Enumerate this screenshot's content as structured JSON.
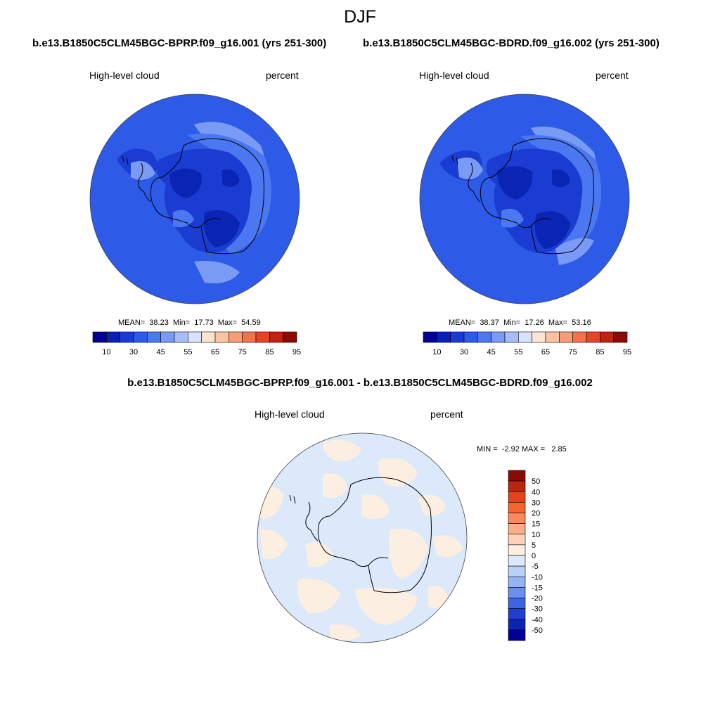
{
  "figure": {
    "season": "DJF",
    "variable": "High-level cloud",
    "units": "percent"
  },
  "panels": [
    {
      "case": "b.e13.B1850C5CLM45BGC-BPRP.f09_g16.001 (yrs 251-300)",
      "stats": "MEAN=  38.23  Min=  17.73  Max=  54.59"
    },
    {
      "case": "b.e13.B1850C5CLM45BGC-BDRD.f09_g16.002 (yrs 251-300)",
      "stats": "MEAN=  38.37  Min=  17.26  Max=  53.16"
    }
  ],
  "difference": {
    "title": "b.e13.B1850C5CLM45BGC-BPRP.f09_g16.001 - b.e13.B1850C5CLM45BGC-BDRD.f09_g16.002",
    "stats": "MIN =  -2.92 MAX =   2.85"
  },
  "colorbar_abs": {
    "colors": [
      "#000096",
      "#0a1fb4",
      "#1a3cd2",
      "#2d5ae6",
      "#4b78f0",
      "#7a9bf5",
      "#a6bdf8",
      "#d6e4fb",
      "#fde4d2",
      "#fcc3a3",
      "#f89c77",
      "#f3724b",
      "#e34627",
      "#c02214",
      "#8c0a04"
    ],
    "tick_labels": [
      "10",
      "30",
      "45",
      "55",
      "65",
      "75",
      "85",
      "95"
    ]
  },
  "colorbar_diff": {
    "colors": [
      "#8c0a04",
      "#b8260e",
      "#e0441c",
      "#f5642f",
      "#fa8a5e",
      "#fcae89",
      "#fdd2b8",
      "#fdeee2",
      "#dbe9fb",
      "#bad2f8",
      "#93b3f4",
      "#6b8fee",
      "#3f64e3",
      "#1f3fd0",
      "#0a24b4",
      "#000096"
    ],
    "tick_labels": [
      "50",
      "40",
      "30",
      "20",
      "15",
      "10",
      "5",
      "0",
      "-5",
      "-10",
      "-15",
      "-20",
      "-30",
      "-40",
      "-50"
    ]
  },
  "map_colors": {
    "ocean_abs": "#2d5ae6",
    "mid_abs": "#1a3cd2",
    "deep_abs": "#0a24b4",
    "light_abs": "#4b78f0",
    "pale_abs": "#7a9bf5",
    "diff_neg": "#dbe9fb",
    "diff_pos": "#fdeee2"
  }
}
